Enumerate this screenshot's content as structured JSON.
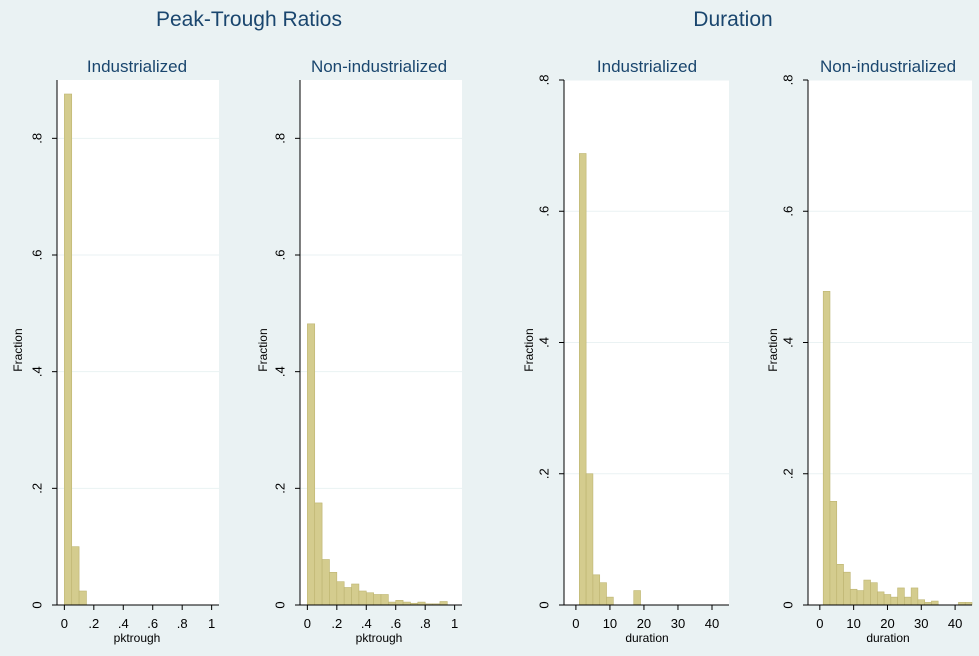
{
  "colors": {
    "background": "#eaf2f3",
    "plot_background": "#ffffff",
    "bar_fill": "#d4cc8e",
    "bar_stroke": "#bdb470",
    "title_color": "#1a466e",
    "grid": "#eaf2f3",
    "axis": "#000000"
  },
  "chart_data": [
    {
      "type": "bar",
      "group_title": "Peak-Trough Ratios",
      "title": "Industrialized",
      "xlabel": "pktrough",
      "ylabel": "Fraction",
      "xlim": [
        -0.05,
        1.05
      ],
      "ylim": [
        0,
        0.9
      ],
      "xticks": [
        0,
        0.2,
        0.4,
        0.6,
        0.8,
        1
      ],
      "xtick_labels": [
        "0",
        ".2",
        ".4",
        ".6",
        ".8",
        "1"
      ],
      "yticks": [
        0,
        0.2,
        0.4,
        0.6,
        0.8
      ],
      "ytick_labels": [
        "0",
        ".2",
        ".4",
        ".6",
        ".8"
      ],
      "bin_width": 0.05,
      "bin_starts": [
        0,
        0.05,
        0.1
      ],
      "values": [
        0.876,
        0.1,
        0.024
      ]
    },
    {
      "type": "bar",
      "group_title": "",
      "title": "Non-industrialized",
      "xlabel": "pktrough",
      "ylabel": "Fraction",
      "xlim": [
        -0.05,
        1.05
      ],
      "ylim": [
        0,
        0.9
      ],
      "xticks": [
        0,
        0.2,
        0.4,
        0.6,
        0.8,
        1
      ],
      "xtick_labels": [
        "0",
        ".2",
        ".4",
        ".6",
        ".8",
        "1"
      ],
      "yticks": [
        0,
        0.2,
        0.4,
        0.6,
        0.8
      ],
      "ytick_labels": [
        "0",
        ".2",
        ".4",
        ".6",
        ".8"
      ],
      "bin_width": 0.05,
      "bin_starts": [
        0,
        0.05,
        0.1,
        0.15,
        0.2,
        0.25,
        0.3,
        0.35,
        0.4,
        0.45,
        0.5,
        0.55,
        0.6,
        0.65,
        0.7,
        0.75,
        0.8,
        0.85,
        0.9
      ],
      "values": [
        0.482,
        0.175,
        0.078,
        0.056,
        0.04,
        0.03,
        0.036,
        0.024,
        0.021,
        0.018,
        0.018,
        0.005,
        0.008,
        0.005,
        0.003,
        0.005,
        0.002,
        0.002,
        0.006
      ]
    },
    {
      "type": "bar",
      "group_title": "Duration",
      "title": "Industrialized",
      "xlabel": "duration",
      "ylabel": "Fraction",
      "xlim": [
        -3.5,
        45
      ],
      "ylim": [
        0,
        0.8
      ],
      "xticks": [
        0,
        10,
        20,
        30,
        40
      ],
      "xtick_labels": [
        "0",
        "10",
        "20",
        "30",
        "40"
      ],
      "yticks": [
        0,
        0.2,
        0.4,
        0.6,
        0.8
      ],
      "ytick_labels": [
        "0",
        ".2",
        ".4",
        ".6",
        ".8"
      ],
      "bin_width": 2,
      "bin_starts": [
        1,
        3,
        5,
        7,
        9,
        11,
        13,
        15,
        17
      ],
      "values": [
        0.688,
        0.2,
        0.046,
        0.034,
        0.012,
        0,
        0,
        0,
        0.022
      ]
    },
    {
      "type": "bar",
      "group_title": "",
      "title": "Non-industrialized",
      "xlabel": "duration",
      "ylabel": "Fraction",
      "xlim": [
        -3.5,
        45
      ],
      "ylim": [
        0,
        0.8
      ],
      "xticks": [
        0,
        10,
        20,
        30,
        40
      ],
      "xtick_labels": [
        "0",
        "10",
        "20",
        "30",
        "40"
      ],
      "yticks": [
        0,
        0.2,
        0.4,
        0.6,
        0.8
      ],
      "ytick_labels": [
        "0",
        ".2",
        ".4",
        ".6",
        ".8"
      ],
      "bin_width": 2,
      "bin_starts": [
        1,
        3,
        5,
        7,
        9,
        11,
        13,
        15,
        17,
        19,
        21,
        23,
        25,
        27,
        29,
        31,
        33,
        35,
        37,
        39,
        41,
        43
      ],
      "values": [
        0.478,
        0.158,
        0.062,
        0.05,
        0.024,
        0.022,
        0.038,
        0.034,
        0.02,
        0.016,
        0.012,
        0.026,
        0.012,
        0.026,
        0.008,
        0.004,
        0.006,
        0,
        0,
        0,
        0.004,
        0.004
      ]
    }
  ]
}
